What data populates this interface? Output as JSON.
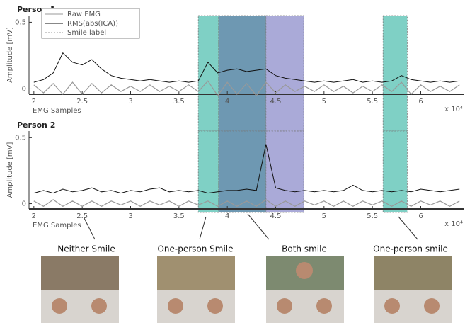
{
  "chart_data": [
    {
      "type": "line",
      "title": "Person 1",
      "ylabel": "Amplitude [mV]",
      "xlabel": "EMG Samples",
      "x_multiplier": "x 10⁴",
      "xlim": [
        1.95,
        6.45
      ],
      "xticks": [
        2,
        2.5,
        3,
        3.5,
        4,
        4.5,
        5,
        5.5,
        6
      ],
      "ylim": [
        -0.04,
        0.55
      ],
      "yticks": [
        0,
        0.5
      ],
      "legend": "upper left",
      "x": [
        2.0,
        2.1,
        2.2,
        2.3,
        2.4,
        2.5,
        2.6,
        2.7,
        2.8,
        2.9,
        3.0,
        3.1,
        3.2,
        3.3,
        3.4,
        3.5,
        3.6,
        3.7,
        3.8,
        3.9,
        4.0,
        4.1,
        4.2,
        4.3,
        4.4,
        4.5,
        4.6,
        4.7,
        4.8,
        4.9,
        5.0,
        5.1,
        5.2,
        5.3,
        5.4,
        5.5,
        5.6,
        5.7,
        5.8,
        5.9,
        6.0,
        6.1,
        6.2,
        6.3,
        6.4
      ],
      "series": [
        {
          "name": "Raw EMG",
          "color": "#999999",
          "values": [
            0.03,
            -0.03,
            0.04,
            -0.04,
            0.05,
            -0.04,
            0.04,
            -0.03,
            0.03,
            -0.02,
            0.02,
            -0.02,
            0.03,
            -0.02,
            0.02,
            -0.02,
            0.03,
            -0.02,
            0.06,
            -0.05,
            0.05,
            -0.04,
            0.04,
            -0.05,
            0.05,
            -0.03,
            0.03,
            -0.02,
            0.02,
            -0.02,
            0.03,
            -0.02,
            0.02,
            -0.03,
            0.02,
            -0.02,
            0.03,
            -0.02,
            0.05,
            -0.04,
            0.03,
            -0.02,
            0.02,
            -0.02,
            0.03
          ]
        },
        {
          "name": "RMS(abs(ICA))",
          "color": "#111111",
          "values": [
            0.05,
            0.07,
            0.12,
            0.27,
            0.2,
            0.18,
            0.22,
            0.15,
            0.1,
            0.08,
            0.07,
            0.06,
            0.07,
            0.06,
            0.05,
            0.06,
            0.05,
            0.06,
            0.2,
            0.12,
            0.14,
            0.15,
            0.13,
            0.14,
            0.15,
            0.1,
            0.08,
            0.07,
            0.06,
            0.05,
            0.06,
            0.05,
            0.06,
            0.07,
            0.05,
            0.06,
            0.05,
            0.06,
            0.1,
            0.07,
            0.06,
            0.05,
            0.06,
            0.05,
            0.06
          ]
        }
      ],
      "regions_name": "Smile label",
      "regions": [
        {
          "start": 3.7,
          "end": 3.91,
          "color": "#7fd0c5"
        },
        {
          "start": 3.91,
          "end": 4.4,
          "color": "#6e98b2"
        },
        {
          "start": 4.4,
          "end": 4.79,
          "color": "#aaaad8"
        },
        {
          "start": 5.61,
          "end": 5.86,
          "color": "#7fd0c5"
        }
      ]
    },
    {
      "type": "line",
      "title": "Person 2",
      "ylabel": "Amplitude [mV]",
      "xlabel": "EMG Samples",
      "x_multiplier": "x 10⁴",
      "xlim": [
        1.95,
        6.45
      ],
      "xticks": [
        2,
        2.5,
        3,
        3.5,
        4,
        4.5,
        5,
        5.5,
        6
      ],
      "ylim": [
        -0.04,
        0.55
      ],
      "yticks": [
        0,
        0.5
      ],
      "x": [
        2.0,
        2.1,
        2.2,
        2.3,
        2.4,
        2.5,
        2.6,
        2.7,
        2.8,
        2.9,
        3.0,
        3.1,
        3.2,
        3.3,
        3.4,
        3.5,
        3.6,
        3.7,
        3.8,
        3.9,
        4.0,
        4.1,
        4.2,
        4.3,
        4.4,
        4.5,
        4.6,
        4.7,
        4.8,
        4.9,
        5.0,
        5.1,
        5.2,
        5.3,
        5.4,
        5.5,
        5.6,
        5.7,
        5.8,
        5.9,
        6.0,
        6.1,
        6.2,
        6.3,
        6.4
      ],
      "series": [
        {
          "name": "Raw EMG",
          "color": "#999999",
          "values": [
            0.02,
            -0.02,
            0.03,
            -0.02,
            0.02,
            -0.02,
            0.02,
            -0.02,
            0.02,
            -0.01,
            0.02,
            -0.02,
            0.02,
            -0.01,
            0.02,
            -0.02,
            0.02,
            -0.01,
            0.02,
            -0.02,
            0.02,
            -0.02,
            0.02,
            -0.02,
            0.03,
            -0.02,
            0.02,
            -0.02,
            0.02,
            -0.01,
            0.02,
            -0.02,
            0.02,
            -0.02,
            0.02,
            -0.01,
            0.02,
            -0.02,
            0.02,
            -0.02,
            0.02,
            -0.01,
            0.02,
            -0.02,
            0.02
          ]
        },
        {
          "name": "RMS(abs(ICA))",
          "color": "#111111",
          "values": [
            0.08,
            0.1,
            0.08,
            0.11,
            0.09,
            0.1,
            0.12,
            0.09,
            0.1,
            0.08,
            0.1,
            0.09,
            0.11,
            0.12,
            0.09,
            0.1,
            0.09,
            0.1,
            0.08,
            0.09,
            0.1,
            0.1,
            0.11,
            0.1,
            0.45,
            0.12,
            0.1,
            0.09,
            0.1,
            0.09,
            0.1,
            0.09,
            0.1,
            0.14,
            0.1,
            0.09,
            0.1,
            0.09,
            0.1,
            0.09,
            0.11,
            0.1,
            0.09,
            0.1,
            0.11
          ]
        }
      ],
      "regions": [
        {
          "start": 3.7,
          "end": 3.91,
          "color": "#7fd0c5"
        },
        {
          "start": 3.91,
          "end": 4.4,
          "color": "#6e98b2"
        },
        {
          "start": 4.4,
          "end": 4.79,
          "color": "#aaaad8"
        },
        {
          "start": 5.61,
          "end": 5.86,
          "color": "#7fd0c5"
        }
      ]
    }
  ],
  "panels": [
    {
      "caption": "Neither Smile"
    },
    {
      "caption": "One-person Smile"
    },
    {
      "caption": "Both smile"
    },
    {
      "caption": "One-person smile"
    }
  ]
}
